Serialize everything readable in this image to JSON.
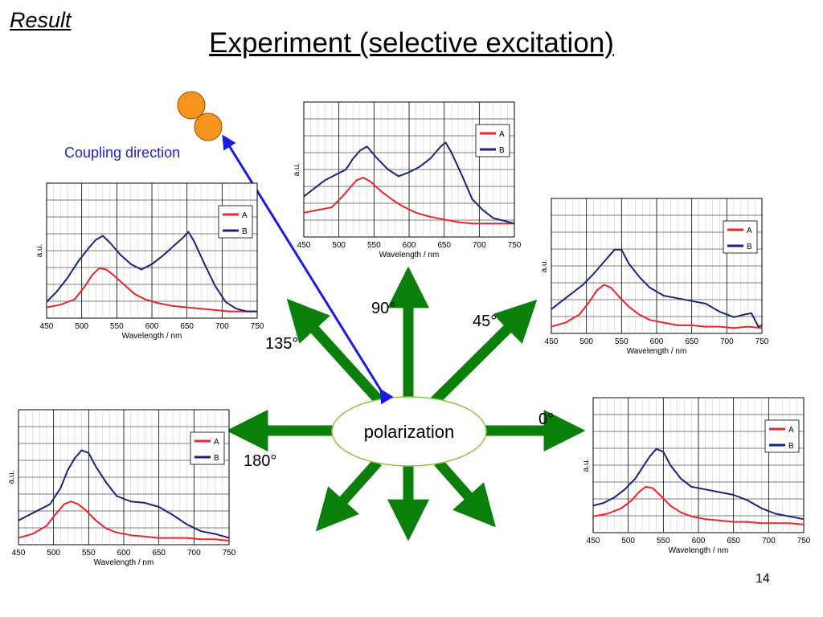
{
  "header": {
    "result_label": "Result",
    "title": "Experiment (selective excitation)"
  },
  "coupling_label": "Coupling direction",
  "polarization_label": "polarization",
  "angles": {
    "a0": "0°",
    "a45": "45°",
    "a90": "90°",
    "a135": "135°",
    "a180": "180°"
  },
  "slide_number": "14",
  "colors": {
    "series_a": "#e8262b",
    "series_b": "#1a237e",
    "arrow_green": "#0a800a",
    "coupling_arrow": "#1a1ae6",
    "particle_fill": "#f7941d"
  },
  "chart_data": [
    {
      "id": "chart-90",
      "type": "line",
      "polarization": "90°",
      "xlabel": "Wavelength / nm",
      "ylabel": "a.u.",
      "xlim": [
        450,
        750
      ],
      "ylim": [
        0,
        1
      ],
      "xticks": [
        450,
        500,
        550,
        600,
        650,
        700,
        750
      ],
      "legend": "top-right",
      "series": [
        {
          "name": "A",
          "color": "#e8262b",
          "x": [
            450,
            470,
            490,
            505,
            515,
            525,
            535,
            545,
            560,
            575,
            590,
            610,
            630,
            650,
            670,
            690,
            710,
            730,
            750
          ],
          "y": [
            0.18,
            0.2,
            0.22,
            0.3,
            0.36,
            0.42,
            0.44,
            0.41,
            0.34,
            0.28,
            0.23,
            0.18,
            0.15,
            0.13,
            0.11,
            0.1,
            0.1,
            0.1,
            0.1
          ]
        },
        {
          "name": "B",
          "color": "#1a237e",
          "x": [
            450,
            465,
            480,
            495,
            510,
            520,
            530,
            540,
            555,
            570,
            585,
            600,
            615,
            630,
            645,
            652,
            660,
            675,
            690,
            705,
            720,
            735,
            750
          ],
          "y": [
            0.3,
            0.36,
            0.42,
            0.46,
            0.5,
            0.58,
            0.64,
            0.67,
            0.58,
            0.5,
            0.45,
            0.48,
            0.52,
            0.58,
            0.67,
            0.7,
            0.63,
            0.46,
            0.28,
            0.2,
            0.14,
            0.12,
            0.1
          ]
        }
      ]
    },
    {
      "id": "chart-135",
      "type": "line",
      "polarization": "135°",
      "xlabel": "Wavelength / nm",
      "ylabel": "a.u.",
      "xlim": [
        450,
        750
      ],
      "ylim": [
        0,
        1
      ],
      "xticks": [
        450,
        500,
        550,
        600,
        650,
        700,
        750
      ],
      "legend": "top-right",
      "series": [
        {
          "name": "A",
          "color": "#e8262b",
          "x": [
            450,
            470,
            490,
            505,
            515,
            525,
            535,
            545,
            560,
            575,
            590,
            610,
            630,
            650,
            670,
            690,
            710,
            730,
            750
          ],
          "y": [
            0.08,
            0.1,
            0.14,
            0.24,
            0.32,
            0.37,
            0.36,
            0.32,
            0.25,
            0.18,
            0.14,
            0.11,
            0.09,
            0.08,
            0.07,
            0.06,
            0.05,
            0.05,
            0.05
          ]
        },
        {
          "name": "B",
          "color": "#1a237e",
          "x": [
            450,
            465,
            480,
            495,
            510,
            520,
            530,
            540,
            555,
            570,
            585,
            600,
            615,
            630,
            645,
            652,
            660,
            675,
            690,
            705,
            720,
            735,
            750
          ],
          "y": [
            0.12,
            0.2,
            0.3,
            0.42,
            0.52,
            0.58,
            0.61,
            0.56,
            0.47,
            0.4,
            0.36,
            0.4,
            0.46,
            0.53,
            0.6,
            0.64,
            0.57,
            0.4,
            0.24,
            0.12,
            0.07,
            0.05,
            0.05
          ]
        }
      ]
    },
    {
      "id": "chart-45",
      "type": "line",
      "polarization": "45°",
      "xlabel": "Wavelength / nm",
      "ylabel": "a.u.",
      "xlim": [
        450,
        750
      ],
      "ylim": [
        0,
        1
      ],
      "xticks": [
        450,
        500,
        550,
        600,
        650,
        700,
        750
      ],
      "legend": "top-right",
      "series": [
        {
          "name": "A",
          "color": "#e8262b",
          "x": [
            450,
            470,
            490,
            505,
            515,
            525,
            535,
            545,
            560,
            575,
            590,
            610,
            630,
            650,
            670,
            690,
            710,
            730,
            750
          ],
          "y": [
            0.05,
            0.08,
            0.14,
            0.24,
            0.32,
            0.36,
            0.34,
            0.28,
            0.2,
            0.14,
            0.1,
            0.08,
            0.06,
            0.06,
            0.05,
            0.05,
            0.04,
            0.05,
            0.04
          ]
        },
        {
          "name": "B",
          "color": "#1a237e",
          "x": [
            450,
            465,
            480,
            495,
            510,
            520,
            530,
            540,
            550,
            560,
            575,
            590,
            610,
            630,
            650,
            670,
            690,
            710,
            725,
            735,
            745,
            750
          ],
          "y": [
            0.18,
            0.24,
            0.3,
            0.36,
            0.44,
            0.5,
            0.56,
            0.62,
            0.62,
            0.52,
            0.42,
            0.34,
            0.28,
            0.26,
            0.24,
            0.22,
            0.16,
            0.12,
            0.14,
            0.15,
            0.05,
            0.06
          ]
        }
      ]
    },
    {
      "id": "chart-180",
      "type": "line",
      "polarization": "180°",
      "xlabel": "Wavelength / nm",
      "ylabel": "a.u.",
      "xlim": [
        450,
        750
      ],
      "ylim": [
        0,
        1
      ],
      "xticks": [
        450,
        500,
        550,
        600,
        650,
        700,
        750
      ],
      "legend": "top-right",
      "series": [
        {
          "name": "A",
          "color": "#e8262b",
          "x": [
            450,
            470,
            490,
            505,
            515,
            525,
            535,
            545,
            560,
            575,
            590,
            610,
            630,
            650,
            670,
            690,
            710,
            730,
            750
          ],
          "y": [
            0.05,
            0.08,
            0.14,
            0.24,
            0.3,
            0.32,
            0.3,
            0.26,
            0.18,
            0.12,
            0.09,
            0.07,
            0.06,
            0.05,
            0.05,
            0.05,
            0.04,
            0.04,
            0.03
          ]
        },
        {
          "name": "B",
          "color": "#1a237e",
          "x": [
            450,
            465,
            480,
            495,
            510,
            520,
            530,
            540,
            550,
            560,
            575,
            590,
            610,
            630,
            650,
            670,
            690,
            710,
            730,
            750
          ],
          "y": [
            0.18,
            0.22,
            0.26,
            0.3,
            0.42,
            0.55,
            0.64,
            0.7,
            0.68,
            0.58,
            0.46,
            0.36,
            0.32,
            0.31,
            0.28,
            0.22,
            0.15,
            0.1,
            0.08,
            0.05
          ]
        }
      ]
    },
    {
      "id": "chart-0",
      "type": "line",
      "polarization": "0°",
      "xlabel": "Wavelength / nm",
      "ylabel": "a.u.",
      "xlim": [
        450,
        750
      ],
      "ylim": [
        0,
        1
      ],
      "xticks": [
        450,
        500,
        550,
        600,
        650,
        700,
        750
      ],
      "legend": "top-right",
      "series": [
        {
          "name": "A",
          "color": "#e8262b",
          "x": [
            450,
            470,
            490,
            505,
            515,
            525,
            535,
            545,
            560,
            575,
            590,
            610,
            630,
            650,
            670,
            690,
            710,
            730,
            750
          ],
          "y": [
            0.12,
            0.14,
            0.18,
            0.24,
            0.3,
            0.34,
            0.33,
            0.28,
            0.2,
            0.15,
            0.12,
            0.1,
            0.09,
            0.08,
            0.08,
            0.07,
            0.07,
            0.07,
            0.06
          ]
        },
        {
          "name": "B",
          "color": "#1a237e",
          "x": [
            450,
            465,
            480,
            495,
            510,
            520,
            530,
            540,
            550,
            560,
            575,
            590,
            610,
            630,
            650,
            670,
            690,
            710,
            730,
            750
          ],
          "y": [
            0.2,
            0.22,
            0.26,
            0.32,
            0.4,
            0.48,
            0.56,
            0.62,
            0.6,
            0.5,
            0.4,
            0.34,
            0.32,
            0.3,
            0.28,
            0.24,
            0.18,
            0.14,
            0.12,
            0.1
          ]
        }
      ]
    }
  ]
}
